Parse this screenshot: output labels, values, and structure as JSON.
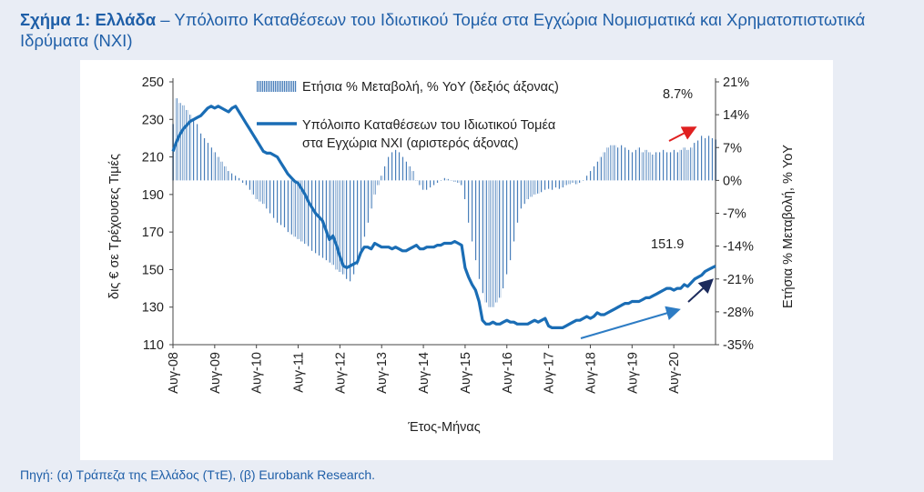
{
  "header": {
    "title_bold": "Σχήμα 1: Ελλάδα",
    "title_rest": " – Υπόλοιπο Καταθέσεων του Ιδιωτικού Τομέα στα Εγχώρια Νομισματικά και Χρηματοπιστωτικά Ιδρύματα (ΝΧΙ)"
  },
  "footer": {
    "source": "Πηγή: (α) Τράπεζα της Ελλάδος (ΤτΕ), (β) Eurobank Research."
  },
  "colors": {
    "line": "#1a6db5",
    "bars": "#4a7fba",
    "red_arrow": "#e02020",
    "navy_arrow": "#1b2a5c",
    "blue_arrow": "#2d7cc4",
    "title": "#1f5fa8"
  },
  "chart_data": {
    "type": "bar+line",
    "xlabel": "Έτος-Μήνας",
    "ylabel_left": "δις € σε Τρέχουσες Τιμές",
    "ylabel_right": "Ετήσια % Μεταβολή, % YoY",
    "ylim_left": [
      110,
      250
    ],
    "ylim_right": [
      -35,
      21
    ],
    "yticks_left": [
      "250",
      "230",
      "210",
      "190",
      "170",
      "150",
      "130",
      "110"
    ],
    "yticks_right": [
      "21%",
      "14%",
      "7%",
      "0%",
      "-7%",
      "-14%",
      "-21%",
      "-28%",
      "-35%"
    ],
    "xticks": [
      "Αυγ-08",
      "Αυγ-09",
      "Αυγ-10",
      "Αυγ-11",
      "Αυγ-12",
      "Αυγ-13",
      "Αυγ-14",
      "Αυγ-15",
      "Αυγ-16",
      "Αυγ-17",
      "Αυγ-18",
      "Αυγ-19",
      "Αυγ-20"
    ],
    "legend_bar": "Ετήσια % Μεταβολή, % YoY (δεξιός άξονας)",
    "legend_line_1": "Υπόλοιπο Καταθέσεων του Ιδιωτικού Τομέα",
    "legend_line_2": "στα Εγχώρια ΝΧΙ (αριστερός άξονας)",
    "annotation_bar": "8.7%",
    "annotation_line": "151.9",
    "series": [
      {
        "name": "Υπόλοιπο Καταθέσεων του Ιδιωτικού Τομέα στα Εγχώρια ΝΧΙ",
        "axis": "left",
        "values": [
          [
            0,
            213
          ],
          [
            1,
            218
          ],
          [
            2,
            222
          ],
          [
            3,
            225
          ],
          [
            4,
            227
          ],
          [
            5,
            229
          ],
          [
            6,
            230
          ],
          [
            7,
            231
          ],
          [
            8,
            232
          ],
          [
            9,
            234
          ],
          [
            10,
            236
          ],
          [
            11,
            237
          ],
          [
            12,
            236
          ],
          [
            13,
            237
          ],
          [
            14,
            236
          ],
          [
            15,
            235
          ],
          [
            16,
            234
          ],
          [
            17,
            236
          ],
          [
            18,
            237
          ],
          [
            19,
            234
          ],
          [
            20,
            231
          ],
          [
            21,
            228
          ],
          [
            22,
            225
          ],
          [
            23,
            222
          ],
          [
            24,
            219
          ],
          [
            25,
            216
          ],
          [
            26,
            213
          ],
          [
            27,
            212
          ],
          [
            28,
            212
          ],
          [
            29,
            211
          ],
          [
            30,
            210
          ],
          [
            31,
            207
          ],
          [
            32,
            204
          ],
          [
            33,
            201
          ],
          [
            34,
            199
          ],
          [
            35,
            197
          ],
          [
            36,
            196
          ],
          [
            37,
            193
          ],
          [
            38,
            190
          ],
          [
            39,
            186
          ],
          [
            40,
            183
          ],
          [
            41,
            180
          ],
          [
            42,
            178
          ],
          [
            43,
            176
          ],
          [
            44,
            171
          ],
          [
            45,
            166
          ],
          [
            46,
            168
          ],
          [
            47,
            163
          ],
          [
            48,
            157
          ],
          [
            49,
            152
          ],
          [
            50,
            151
          ],
          [
            51,
            152
          ],
          [
            52,
            153
          ],
          [
            53,
            154
          ],
          [
            54,
            159
          ],
          [
            55,
            162
          ],
          [
            56,
            162
          ],
          [
            57,
            161
          ],
          [
            58,
            164
          ],
          [
            59,
            163
          ],
          [
            60,
            162
          ],
          [
            61,
            162
          ],
          [
            62,
            162
          ],
          [
            63,
            161
          ],
          [
            64,
            162
          ],
          [
            65,
            161
          ],
          [
            66,
            160
          ],
          [
            67,
            160
          ],
          [
            68,
            161
          ],
          [
            69,
            162
          ],
          [
            70,
            163
          ],
          [
            71,
            161
          ],
          [
            72,
            161
          ],
          [
            73,
            162
          ],
          [
            74,
            162
          ],
          [
            75,
            162
          ],
          [
            76,
            163
          ],
          [
            77,
            163
          ],
          [
            78,
            164
          ],
          [
            79,
            164
          ],
          [
            80,
            164
          ],
          [
            81,
            165
          ],
          [
            82,
            164
          ],
          [
            83,
            163
          ],
          [
            84,
            151
          ],
          [
            85,
            146
          ],
          [
            86,
            142
          ],
          [
            87,
            139
          ],
          [
            88,
            133
          ],
          [
            89,
            123
          ],
          [
            90,
            121
          ],
          [
            91,
            121
          ],
          [
            92,
            122
          ],
          [
            93,
            121
          ],
          [
            94,
            121
          ],
          [
            95,
            122
          ],
          [
            96,
            123
          ],
          [
            97,
            122
          ],
          [
            98,
            122
          ],
          [
            99,
            121
          ],
          [
            100,
            121
          ],
          [
            101,
            121
          ],
          [
            102,
            121
          ],
          [
            103,
            122
          ],
          [
            104,
            123
          ],
          [
            105,
            122
          ],
          [
            106,
            123
          ],
          [
            107,
            124
          ],
          [
            108,
            120
          ],
          [
            109,
            119
          ],
          [
            110,
            119
          ],
          [
            111,
            119
          ],
          [
            112,
            119
          ],
          [
            113,
            120
          ],
          [
            114,
            121
          ],
          [
            115,
            122
          ],
          [
            116,
            123
          ],
          [
            117,
            123
          ],
          [
            118,
            124
          ],
          [
            119,
            125
          ],
          [
            120,
            124
          ],
          [
            121,
            125
          ],
          [
            122,
            127
          ],
          [
            123,
            126
          ],
          [
            124,
            126
          ],
          [
            125,
            127
          ],
          [
            126,
            128
          ],
          [
            127,
            129
          ],
          [
            128,
            130
          ],
          [
            129,
            131
          ],
          [
            130,
            132
          ],
          [
            131,
            132
          ],
          [
            132,
            133
          ],
          [
            133,
            133
          ],
          [
            134,
            133
          ],
          [
            135,
            134
          ],
          [
            136,
            135
          ],
          [
            137,
            135
          ],
          [
            138,
            136
          ],
          [
            139,
            137
          ],
          [
            140,
            138
          ],
          [
            141,
            139
          ],
          [
            142,
            140
          ],
          [
            143,
            140
          ],
          [
            144,
            139
          ],
          [
            145,
            140
          ],
          [
            146,
            140
          ],
          [
            147,
            142
          ],
          [
            148,
            141
          ],
          [
            149,
            143
          ],
          [
            150,
            145
          ],
          [
            151,
            146
          ],
          [
            152,
            147
          ],
          [
            153,
            149
          ],
          [
            154,
            150
          ],
          [
            155,
            151
          ],
          [
            156,
            151.9
          ]
        ]
      },
      {
        "name": "Ετήσια % Μεταβολή, % YoY",
        "axis": "right",
        "values": [
          [
            0,
            12
          ],
          [
            1,
            17.5
          ],
          [
            2,
            16.5
          ],
          [
            3,
            16
          ],
          [
            4,
            15
          ],
          [
            5,
            14
          ],
          [
            6,
            13
          ],
          [
            7,
            12
          ],
          [
            8,
            10
          ],
          [
            9,
            9
          ],
          [
            10,
            8
          ],
          [
            11,
            7
          ],
          [
            12,
            6
          ],
          [
            13,
            5
          ],
          [
            14,
            4
          ],
          [
            15,
            3
          ],
          [
            16,
            2
          ],
          [
            17,
            1.5
          ],
          [
            18,
            1
          ],
          [
            19,
            0.5
          ],
          [
            20,
            -0.5
          ],
          [
            21,
            -1
          ],
          [
            22,
            -2
          ],
          [
            23,
            -3
          ],
          [
            24,
            -4
          ],
          [
            25,
            -4.5
          ],
          [
            26,
            -5
          ],
          [
            27,
            -6
          ],
          [
            28,
            -7
          ],
          [
            29,
            -8
          ],
          [
            30,
            -9
          ],
          [
            31,
            -9.5
          ],
          [
            32,
            -10
          ],
          [
            33,
            -11
          ],
          [
            34,
            -11.5
          ],
          [
            35,
            -12
          ],
          [
            36,
            -12.5
          ],
          [
            37,
            -13
          ],
          [
            38,
            -13.5
          ],
          [
            39,
            -14
          ],
          [
            40,
            -15
          ],
          [
            41,
            -15.5
          ],
          [
            42,
            -16
          ],
          [
            43,
            -16.5
          ],
          [
            44,
            -17
          ],
          [
            45,
            -17.5
          ],
          [
            46,
            -18
          ],
          [
            47,
            -19
          ],
          [
            48,
            -19.5
          ],
          [
            49,
            -20
          ],
          [
            50,
            -21
          ],
          [
            51,
            -21.5
          ],
          [
            52,
            -20
          ],
          [
            53,
            -18
          ],
          [
            54,
            -15
          ],
          [
            55,
            -12
          ],
          [
            56,
            -9
          ],
          [
            57,
            -6
          ],
          [
            58,
            -3
          ],
          [
            59,
            -1
          ],
          [
            60,
            1
          ],
          [
            61,
            3
          ],
          [
            62,
            5
          ],
          [
            63,
            6
          ],
          [
            64,
            6.5
          ],
          [
            65,
            6
          ],
          [
            66,
            5
          ],
          [
            67,
            4
          ],
          [
            68,
            3
          ],
          [
            69,
            2
          ],
          [
            70,
            0
          ],
          [
            71,
            -1
          ],
          [
            72,
            -2
          ],
          [
            73,
            -2
          ],
          [
            74,
            -1.5
          ],
          [
            75,
            -1
          ],
          [
            76,
            -0.5
          ],
          [
            77,
            0
          ],
          [
            78,
            0.5
          ],
          [
            79,
            0.3
          ],
          [
            80,
            0
          ],
          [
            81,
            -0.3
          ],
          [
            82,
            -0.5
          ],
          [
            83,
            -1
          ],
          [
            84,
            -4
          ],
          [
            85,
            -9
          ],
          [
            86,
            -13
          ],
          [
            87,
            -17
          ],
          [
            88,
            -21
          ],
          [
            89,
            -24
          ],
          [
            90,
            -26
          ],
          [
            91,
            -27
          ],
          [
            92,
            -27
          ],
          [
            93,
            -26
          ],
          [
            94,
            -25
          ],
          [
            95,
            -23
          ],
          [
            96,
            -20
          ],
          [
            97,
            -17
          ],
          [
            98,
            -13
          ],
          [
            99,
            -9
          ],
          [
            100,
            -6
          ],
          [
            101,
            -5
          ],
          [
            102,
            -4
          ],
          [
            103,
            -3.5
          ],
          [
            104,
            -3
          ],
          [
            105,
            -2.8
          ],
          [
            106,
            -2.5
          ],
          [
            107,
            -2
          ],
          [
            108,
            -1.8
          ],
          [
            109,
            -2
          ],
          [
            110,
            -1.5
          ],
          [
            111,
            -1.8
          ],
          [
            112,
            -1.5
          ],
          [
            113,
            -1
          ],
          [
            114,
            -0.8
          ],
          [
            115,
            -0.5
          ],
          [
            116,
            -0.8
          ],
          [
            117,
            -0.5
          ],
          [
            118,
            0
          ],
          [
            119,
            1
          ],
          [
            120,
            2
          ],
          [
            121,
            3
          ],
          [
            122,
            4
          ],
          [
            123,
            5
          ],
          [
            124,
            6
          ],
          [
            125,
            7
          ],
          [
            126,
            7.5
          ],
          [
            127,
            7.5
          ],
          [
            128,
            7
          ],
          [
            129,
            7.5
          ],
          [
            130,
            7
          ],
          [
            131,
            6.5
          ],
          [
            132,
            6
          ],
          [
            133,
            6.5
          ],
          [
            134,
            7
          ],
          [
            135,
            6
          ],
          [
            136,
            6.5
          ],
          [
            137,
            6
          ],
          [
            138,
            5.5
          ],
          [
            139,
            6
          ],
          [
            140,
            6
          ],
          [
            141,
            6.5
          ],
          [
            142,
            6
          ],
          [
            143,
            6
          ],
          [
            144,
            6.5
          ],
          [
            145,
            6
          ],
          [
            146,
            6.5
          ],
          [
            147,
            7
          ],
          [
            148,
            6.5
          ],
          [
            149,
            7
          ],
          [
            150,
            8
          ],
          [
            151,
            8.5
          ],
          [
            152,
            9.5
          ],
          [
            153,
            9
          ],
          [
            154,
            9.5
          ],
          [
            155,
            9
          ],
          [
            156,
            8.7
          ]
        ]
      }
    ]
  }
}
